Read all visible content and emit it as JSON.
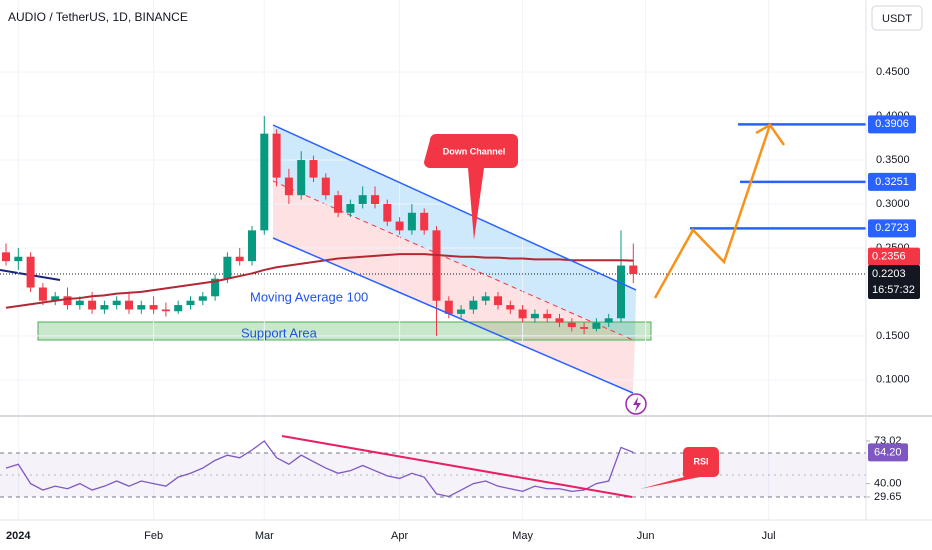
{
  "chart_data": [
    {
      "type": "candlestick",
      "title": "AUDIO / TetherUS, 1D, BINANCE",
      "currency": "USDT",
      "categories": [
        null,
        "2024",
        null,
        null,
        null,
        null,
        null,
        null,
        null,
        null,
        null,
        null,
        "Feb",
        null,
        null,
        null,
        null,
        null,
        null,
        null,
        null,
        "Mar",
        null,
        null,
        null,
        null,
        null,
        null,
        null,
        null,
        null,
        null,
        "Apr",
        null,
        null,
        null,
        null,
        null,
        null,
        null,
        null,
        null,
        "May",
        null,
        null,
        null,
        null,
        null,
        null,
        null,
        null,
        null,
        "Jun",
        null,
        null,
        null,
        null,
        null,
        null,
        null,
        null,
        null,
        "Jul"
      ],
      "open": [
        0.245,
        0.235,
        0.24,
        0.205,
        0.19,
        0.195,
        0.185,
        0.19,
        0.18,
        0.185,
        0.19,
        0.18,
        0.185,
        0.18,
        0.178,
        0.185,
        0.19,
        0.195,
        0.215,
        0.24,
        0.235,
        0.27,
        0.38,
        0.33,
        0.31,
        0.35,
        0.33,
        0.31,
        0.29,
        0.3,
        0.31,
        0.3,
        0.28,
        0.27,
        0.29,
        0.27,
        0.19,
        0.175,
        0.18,
        0.19,
        0.195,
        0.185,
        0.18,
        0.17,
        0.175,
        0.17,
        0.165,
        0.16,
        0.158,
        0.165,
        0.17,
        0.23,
        null,
        null,
        null,
        null,
        null,
        null,
        null,
        null,
        null,
        null,
        null
      ],
      "high": [
        0.255,
        0.25,
        0.245,
        0.21,
        0.2,
        0.205,
        0.195,
        0.2,
        0.19,
        0.195,
        0.2,
        0.19,
        0.195,
        0.188,
        0.19,
        0.195,
        0.2,
        0.22,
        0.245,
        0.25,
        0.275,
        0.4,
        0.385,
        0.34,
        0.36,
        0.355,
        0.335,
        0.315,
        0.305,
        0.32,
        0.32,
        0.305,
        0.285,
        0.3,
        0.295,
        0.275,
        0.195,
        0.185,
        0.195,
        0.2,
        0.2,
        0.19,
        0.185,
        0.18,
        0.18,
        0.175,
        0.17,
        0.165,
        0.17,
        0.175,
        0.27,
        0.255,
        null,
        null,
        null,
        null,
        null,
        null,
        null,
        null,
        null,
        null,
        null
      ],
      "low": [
        0.23,
        0.225,
        0.2,
        0.185,
        0.185,
        0.18,
        0.18,
        0.175,
        0.175,
        0.18,
        0.175,
        0.175,
        0.175,
        0.172,
        0.175,
        0.18,
        0.185,
        0.19,
        0.21,
        0.23,
        0.23,
        0.265,
        0.32,
        0.3,
        0.305,
        0.325,
        0.305,
        0.285,
        0.285,
        0.295,
        0.295,
        0.275,
        0.265,
        0.265,
        0.265,
        0.15,
        0.17,
        0.17,
        0.175,
        0.185,
        0.18,
        0.175,
        0.165,
        0.165,
        0.165,
        0.16,
        0.155,
        0.152,
        0.155,
        0.16,
        0.165,
        0.21,
        null,
        null,
        null,
        null,
        null,
        null,
        null,
        null,
        null,
        null,
        null
      ],
      "close": [
        0.235,
        0.24,
        0.205,
        0.19,
        0.195,
        0.185,
        0.19,
        0.18,
        0.185,
        0.19,
        0.18,
        0.185,
        0.18,
        0.178,
        0.185,
        0.19,
        0.195,
        0.215,
        0.24,
        0.235,
        0.27,
        0.38,
        0.33,
        0.31,
        0.35,
        0.33,
        0.31,
        0.29,
        0.3,
        0.31,
        0.3,
        0.28,
        0.27,
        0.29,
        0.27,
        0.19,
        0.175,
        0.18,
        0.19,
        0.195,
        0.185,
        0.18,
        0.17,
        0.175,
        0.17,
        0.165,
        0.16,
        0.158,
        0.165,
        0.17,
        0.23,
        0.2203,
        null,
        null,
        null,
        null,
        null,
        null,
        null,
        null,
        null,
        null,
        null
      ],
      "up_color": "#089981",
      "down_color": "#f23645",
      "series": [
        {
          "name": "Moving Average 100",
          "color": "#b22833",
          "values": [
            0.182,
            0.184,
            0.186,
            0.188,
            0.19,
            0.192,
            0.193,
            0.195,
            0.196,
            0.198,
            0.199,
            0.2,
            0.202,
            0.204,
            0.206,
            0.208,
            0.21,
            0.212,
            0.215,
            0.218,
            0.221,
            0.225,
            0.228,
            0.23,
            0.232,
            0.234,
            0.236,
            0.238,
            0.239,
            0.24,
            0.241,
            0.242,
            0.243,
            0.243,
            0.243,
            0.242,
            0.241,
            0.24,
            0.24,
            0.239,
            0.239,
            0.238,
            0.238,
            0.237,
            0.237,
            0.237,
            0.236,
            0.236,
            0.236,
            0.236,
            0.236,
            0.2356,
            null,
            null,
            null,
            null,
            null,
            null,
            null,
            null,
            null,
            null,
            null
          ]
        }
      ],
      "ylim": [
        0.06,
        0.532
      ],
      "yticks": [
        {
          "value": 0.45,
          "label": "0.4500"
        },
        {
          "value": 0.4,
          "label": "0.4000"
        },
        {
          "value": 0.35,
          "label": "0.3500"
        },
        {
          "value": 0.3,
          "label": "0.3000"
        },
        {
          "value": 0.25,
          "label": "0.2500"
        },
        {
          "value": 0.15,
          "label": "0.1500"
        },
        {
          "value": 0.1,
          "label": "0.1000"
        }
      ],
      "grid": true,
      "levels": [
        {
          "value": 0.3906,
          "color": "#2962ff"
        },
        {
          "value": 0.3251,
          "color": "#2962ff"
        },
        {
          "value": 0.2723,
          "color": "#2962ff"
        }
      ],
      "price_labels": [
        {
          "value": 0.2356,
          "color": "#f23645"
        },
        {
          "value": 0.2203,
          "color": "#131722"
        }
      ],
      "countdown": "16:57:32",
      "channel_label": "Down Channel",
      "support_label": "Support Area"
    },
    {
      "type": "line",
      "annotation": "RSI",
      "color": "#7e57c2",
      "values": [
        52,
        55,
        40,
        35,
        38,
        36,
        40,
        35,
        38,
        42,
        38,
        42,
        40,
        38,
        45,
        48,
        52,
        58,
        62,
        60,
        66,
        73,
        60,
        55,
        62,
        57,
        52,
        48,
        50,
        54,
        50,
        46,
        44,
        48,
        45,
        32,
        30,
        35,
        40,
        42,
        38,
        36,
        34,
        38,
        36,
        36,
        34,
        35,
        40,
        42,
        68,
        64.2,
        null,
        null,
        null,
        null,
        null,
        null,
        null,
        null,
        null,
        null,
        null
      ],
      "ylim": [
        11.8,
        90.8
      ],
      "yticks": [
        73.02,
        {
          "value": 64.2,
          "label": "64.20"
        },
        {
          "value": 40,
          "label": "40.00"
        },
        29.65
      ]
    }
  ]
}
